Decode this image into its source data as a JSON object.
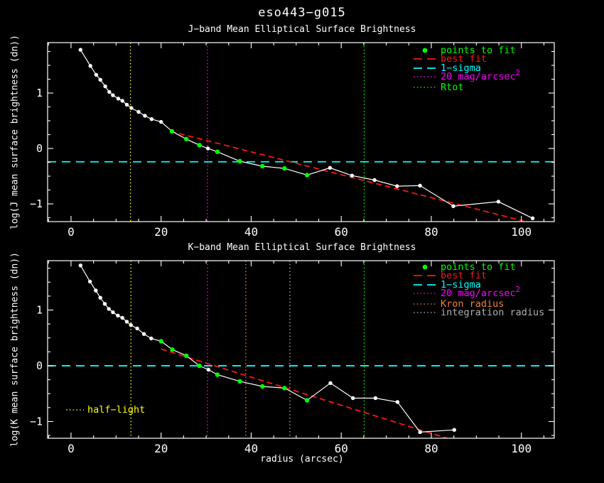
{
  "title": "eso443−g015",
  "xlabel": "radius (arcsec)",
  "colors": {
    "background": "#000000",
    "frame": "#ffffff",
    "profile": "#ffffff",
    "fit_points": "#00ff00",
    "best_fit": "#ff1414",
    "one_sigma": "#00ffff",
    "mag20": "#ff00ff",
    "rtot": "#00ff00",
    "kron": "#f08030",
    "integration": "#b0b0b0",
    "half_light": "#ffff00"
  },
  "point_format": "[radius_arcsec, log_surface_brightness, is_fit_point]",
  "chart_data": [
    {
      "type": "line",
      "title": "J−band Mean Elliptical Surface Brightness",
      "ylabel": "log(J mean surface brightness (dn))",
      "xlabel": "",
      "xlim": [
        -5.2,
        107.3
      ],
      "ylim": [
        -1.32,
        1.91
      ],
      "grid": false,
      "xticks": [
        {
          "v": 0,
          "label": "0"
        },
        {
          "v": 20,
          "label": "20"
        },
        {
          "v": 40,
          "label": "40"
        },
        {
          "v": 60,
          "label": "60"
        },
        {
          "v": 80,
          "label": "80"
        },
        {
          "v": 100,
          "label": "100"
        }
      ],
      "yticks": [
        {
          "v": -1,
          "label": "−1"
        },
        {
          "v": 0,
          "label": "0"
        },
        {
          "v": 1,
          "label": "1"
        }
      ],
      "xtick_minor_step": 5,
      "ytick_minor_step": 0.25,
      "points": [
        [
          2.1,
          1.78,
          0
        ],
        [
          4.3,
          1.49,
          0
        ],
        [
          5.6,
          1.33,
          0
        ],
        [
          6.5,
          1.24,
          0
        ],
        [
          7.6,
          1.12,
          0
        ],
        [
          8.5,
          1.02,
          0
        ],
        [
          9.3,
          0.96,
          0
        ],
        [
          10.5,
          0.9,
          0
        ],
        [
          11.4,
          0.86,
          0
        ],
        [
          12.4,
          0.79,
          0
        ],
        [
          13.4,
          0.73,
          0
        ],
        [
          15.0,
          0.66,
          0
        ],
        [
          16.4,
          0.59,
          0
        ],
        [
          17.9,
          0.53,
          0
        ],
        [
          20.0,
          0.48,
          0
        ],
        [
          22.4,
          0.31,
          1
        ],
        [
          25.6,
          0.17,
          1
        ],
        [
          28.5,
          0.06,
          1
        ],
        [
          30.4,
          0.0,
          0
        ],
        [
          32.5,
          -0.06,
          1
        ],
        [
          37.5,
          -0.23,
          1
        ],
        [
          42.5,
          -0.32,
          1
        ],
        [
          47.4,
          -0.36,
          1
        ],
        [
          52.4,
          -0.48,
          1
        ],
        [
          57.5,
          -0.35,
          0
        ],
        [
          62.4,
          -0.49,
          0
        ],
        [
          67.4,
          -0.57,
          0
        ],
        [
          72.4,
          -0.68,
          0
        ],
        [
          77.5,
          -0.67,
          0
        ],
        [
          84.9,
          -1.04,
          0
        ],
        [
          94.9,
          -0.96,
          0
        ],
        [
          102.5,
          -1.26,
          0
        ]
      ],
      "best_fit_line": {
        "x1": 22.0,
        "y1": 0.31,
        "x2": 100.5,
        "y2": -1.31
      },
      "sigma_line": {
        "y": -0.24
      },
      "vlines": [
        {
          "x": 13.2,
          "name": "half-light-line",
          "color": "#ffff00"
        },
        {
          "x": 30.3,
          "name": "mag20-line",
          "color": "#ff00ff"
        },
        {
          "x": 65.1,
          "name": "rtot-line",
          "color": "#00ff00"
        }
      ],
      "legend": [
        {
          "label": "points to fit",
          "color": "#00ff00",
          "sample": "dot"
        },
        {
          "label": "best fit",
          "color": "#ff1414",
          "sample": "dash"
        },
        {
          "label": "1−sigma",
          "color": "#00ffff",
          "sample": "dash"
        },
        {
          "label": "20 mag/arcsec",
          "sup": "2",
          "color": "#ff00ff",
          "sample": "dots"
        },
        {
          "label": "Rtot",
          "color": "#00ff00",
          "sample": "dots"
        }
      ]
    },
    {
      "type": "line",
      "title": "K−band Mean Elliptical Surface Brightness",
      "ylabel": "log(K mean surface brightness (dn))",
      "xlabel": "radius (arcsec)",
      "xlim": [
        -5.2,
        107.3
      ],
      "ylim": [
        -1.3,
        1.885
      ],
      "grid": false,
      "xticks": [
        {
          "v": 0,
          "label": "0"
        },
        {
          "v": 20,
          "label": "20"
        },
        {
          "v": 40,
          "label": "40"
        },
        {
          "v": 60,
          "label": "60"
        },
        {
          "v": 80,
          "label": "80"
        },
        {
          "v": 100,
          "label": "100"
        }
      ],
      "yticks": [
        {
          "v": -1,
          "label": "−1"
        },
        {
          "v": 0,
          "label": "0"
        },
        {
          "v": 1,
          "label": "1"
        }
      ],
      "xtick_minor_step": 5,
      "ytick_minor_step": 0.25,
      "points": [
        [
          2.1,
          1.8,
          0
        ],
        [
          4.2,
          1.51,
          0
        ],
        [
          5.5,
          1.35,
          0
        ],
        [
          6.5,
          1.22,
          0
        ],
        [
          7.5,
          1.11,
          0
        ],
        [
          8.4,
          1.02,
          0
        ],
        [
          9.3,
          0.96,
          0
        ],
        [
          10.4,
          0.9,
          0
        ],
        [
          11.4,
          0.86,
          0
        ],
        [
          12.4,
          0.79,
          0
        ],
        [
          13.3,
          0.73,
          0
        ],
        [
          14.7,
          0.67,
          0
        ],
        [
          16.2,
          0.57,
          0
        ],
        [
          17.8,
          0.49,
          0
        ],
        [
          20.0,
          0.44,
          1
        ],
        [
          22.5,
          0.29,
          1
        ],
        [
          25.6,
          0.18,
          1
        ],
        [
          28.5,
          0.0,
          1
        ],
        [
          30.5,
          -0.07,
          0
        ],
        [
          32.5,
          -0.16,
          1
        ],
        [
          37.5,
          -0.28,
          1
        ],
        [
          42.5,
          -0.37,
          1
        ],
        [
          47.4,
          -0.4,
          1
        ],
        [
          52.4,
          -0.62,
          1
        ],
        [
          57.6,
          -0.31,
          0
        ],
        [
          62.6,
          -0.58,
          0
        ],
        [
          67.6,
          -0.58,
          0
        ],
        [
          72.5,
          -0.65,
          0
        ],
        [
          77.5,
          -1.19,
          0
        ],
        [
          85.1,
          -1.15,
          0
        ]
      ],
      "best_fit_line": {
        "x1": 20.0,
        "y1": 0.3,
        "x2": 83.5,
        "y2": -1.3
      },
      "sigma_line": {
        "y": 0.0
      },
      "vlines": [
        {
          "x": 13.3,
          "name": "half-light-line",
          "color": "#ffff00"
        },
        {
          "x": 30.3,
          "name": "mag20-line",
          "color": "#ff00ff"
        },
        {
          "x": 38.8,
          "name": "kron-radius-line",
          "color": "#f08030"
        },
        {
          "x": 48.6,
          "name": "integration-radius-line",
          "color": "#b0b0b0"
        },
        {
          "x": 65.1,
          "name": "rtot-line",
          "color": "#00ff00"
        }
      ],
      "legend": [
        {
          "label": "points to fit",
          "color": "#00ff00",
          "sample": "dot"
        },
        {
          "label": "best fit",
          "color": "#ff1414",
          "sample": "dash"
        },
        {
          "label": "1−sigma",
          "color": "#00ffff",
          "sample": "dash"
        },
        {
          "label": "20 mag/arcsec",
          "sup": "2",
          "color": "#ff00ff",
          "sample": "dots"
        },
        {
          "label": "Kron radius",
          "color": "#f08030",
          "sample": "dots"
        },
        {
          "label": "integration radius",
          "color": "#b0b0b0",
          "sample": "dots"
        }
      ],
      "inner_legend": {
        "label": "half−light",
        "color": "#ffff00",
        "sample": "dots"
      }
    }
  ]
}
